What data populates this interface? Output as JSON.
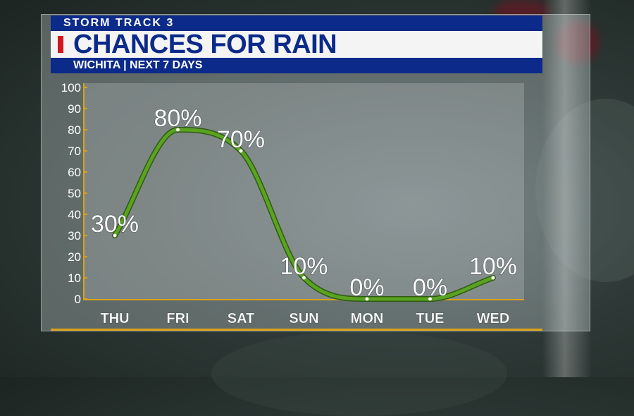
{
  "header": {
    "brand": "STORM TRACK 3",
    "title": "CHANCES FOR RAIN",
    "subtitle": "WICHITA | NEXT 7 DAYS"
  },
  "colors": {
    "brand_blue": "#0b2a8a",
    "accent_red": "#d0181c",
    "line_green": "#5aa321",
    "axis_gold": "#d9a21a"
  },
  "chart_data": {
    "type": "line",
    "categories": [
      "THU",
      "FRI",
      "SAT",
      "SUN",
      "MON",
      "TUE",
      "WED"
    ],
    "values": [
      30,
      80,
      70,
      10,
      0,
      0,
      10
    ],
    "data_labels": [
      "30%",
      "80%",
      "70%",
      "10%",
      "0%",
      "0%",
      "10%"
    ],
    "yticks": [
      0,
      10,
      20,
      30,
      40,
      50,
      60,
      70,
      80,
      90,
      100
    ],
    "ylim": [
      0,
      100
    ],
    "grid": false,
    "legend": "none"
  }
}
